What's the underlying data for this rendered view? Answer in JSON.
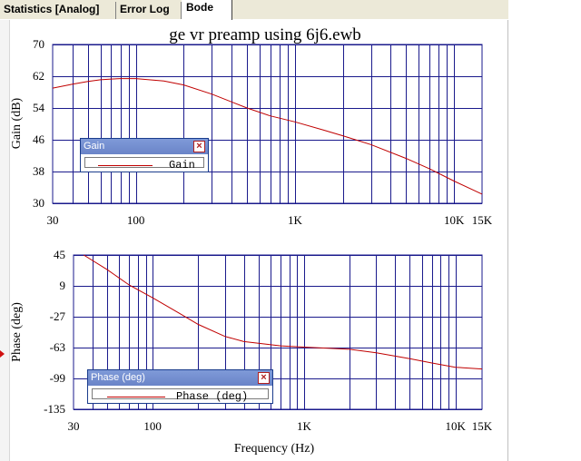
{
  "tabs": [
    {
      "label": "Statistics [Analog]",
      "active": false
    },
    {
      "label": "Error Log",
      "active": false
    },
    {
      "label": "Bode",
      "active": true
    }
  ],
  "chart_data": [
    {
      "type": "line",
      "title": "ge vr preamp using 6j6.ewb",
      "xlabel": "",
      "ylabel": "Gain (dB)",
      "xscale": "log",
      "xlim": [
        30,
        15000
      ],
      "ylim": [
        30,
        70
      ],
      "xticks": [
        {
          "v": 30,
          "label": "30"
        },
        {
          "v": 100,
          "label": "100"
        },
        {
          "v": 1000,
          "label": "1K"
        },
        {
          "v": 10000,
          "label": "10K"
        },
        {
          "v": 15000,
          "label": "15K"
        }
      ],
      "yticks": [
        {
          "v": 70,
          "label": "70"
        },
        {
          "v": 62,
          "label": "62"
        },
        {
          "v": 54,
          "label": "54"
        },
        {
          "v": 46,
          "label": "46"
        },
        {
          "v": 38,
          "label": "38"
        },
        {
          "v": 30,
          "label": "30"
        }
      ],
      "grid": true,
      "legend_position": "center-left",
      "series": [
        {
          "name": "Gain",
          "color": "#c00000",
          "x": [
            30,
            40,
            50,
            60,
            70,
            80,
            100,
            150,
            200,
            300,
            500,
            700,
            1000,
            1500,
            2000,
            3000,
            5000,
            7000,
            10000,
            15000
          ],
          "y": [
            59,
            60,
            60.7,
            61.1,
            61.3,
            61.4,
            61.4,
            60.8,
            59.8,
            57.5,
            54,
            52,
            50.5,
            48.5,
            47,
            44.8,
            41.3,
            38.7,
            35.6,
            32.3
          ]
        }
      ]
    },
    {
      "type": "line",
      "title": "",
      "xlabel": "Frequency (Hz)",
      "ylabel": "Phase (deg)",
      "xscale": "log",
      "xlim": [
        30,
        15000
      ],
      "ylim": [
        -135,
        45
      ],
      "xticks": [
        {
          "v": 30,
          "label": "30"
        },
        {
          "v": 100,
          "label": "100"
        },
        {
          "v": 1000,
          "label": "1K"
        },
        {
          "v": 10000,
          "label": "10K"
        },
        {
          "v": 15000,
          "label": "15K"
        }
      ],
      "yticks": [
        {
          "v": 45,
          "label": "45"
        },
        {
          "v": 9,
          "label": "9"
        },
        {
          "v": -27,
          "label": "-27"
        },
        {
          "v": -63,
          "label": "-63"
        },
        {
          "v": -99,
          "label": "-99"
        },
        {
          "v": -135,
          "label": "-135"
        }
      ],
      "grid": true,
      "legend_position": "bottom-left",
      "series": [
        {
          "name": "Phase (deg)",
          "color": "#c00000",
          "x": [
            35,
            50,
            70,
            100,
            150,
            200,
            300,
            400,
            500,
            700,
            1000,
            1500,
            2000,
            3000,
            5000,
            7000,
            10000,
            15000
          ],
          "y": [
            45,
            28,
            10,
            -5,
            -23,
            -36,
            -50,
            -56,
            -58,
            -61,
            -62.5,
            -64,
            -65,
            -69,
            -76,
            -81,
            -86,
            -88
          ]
        }
      ]
    }
  ]
}
